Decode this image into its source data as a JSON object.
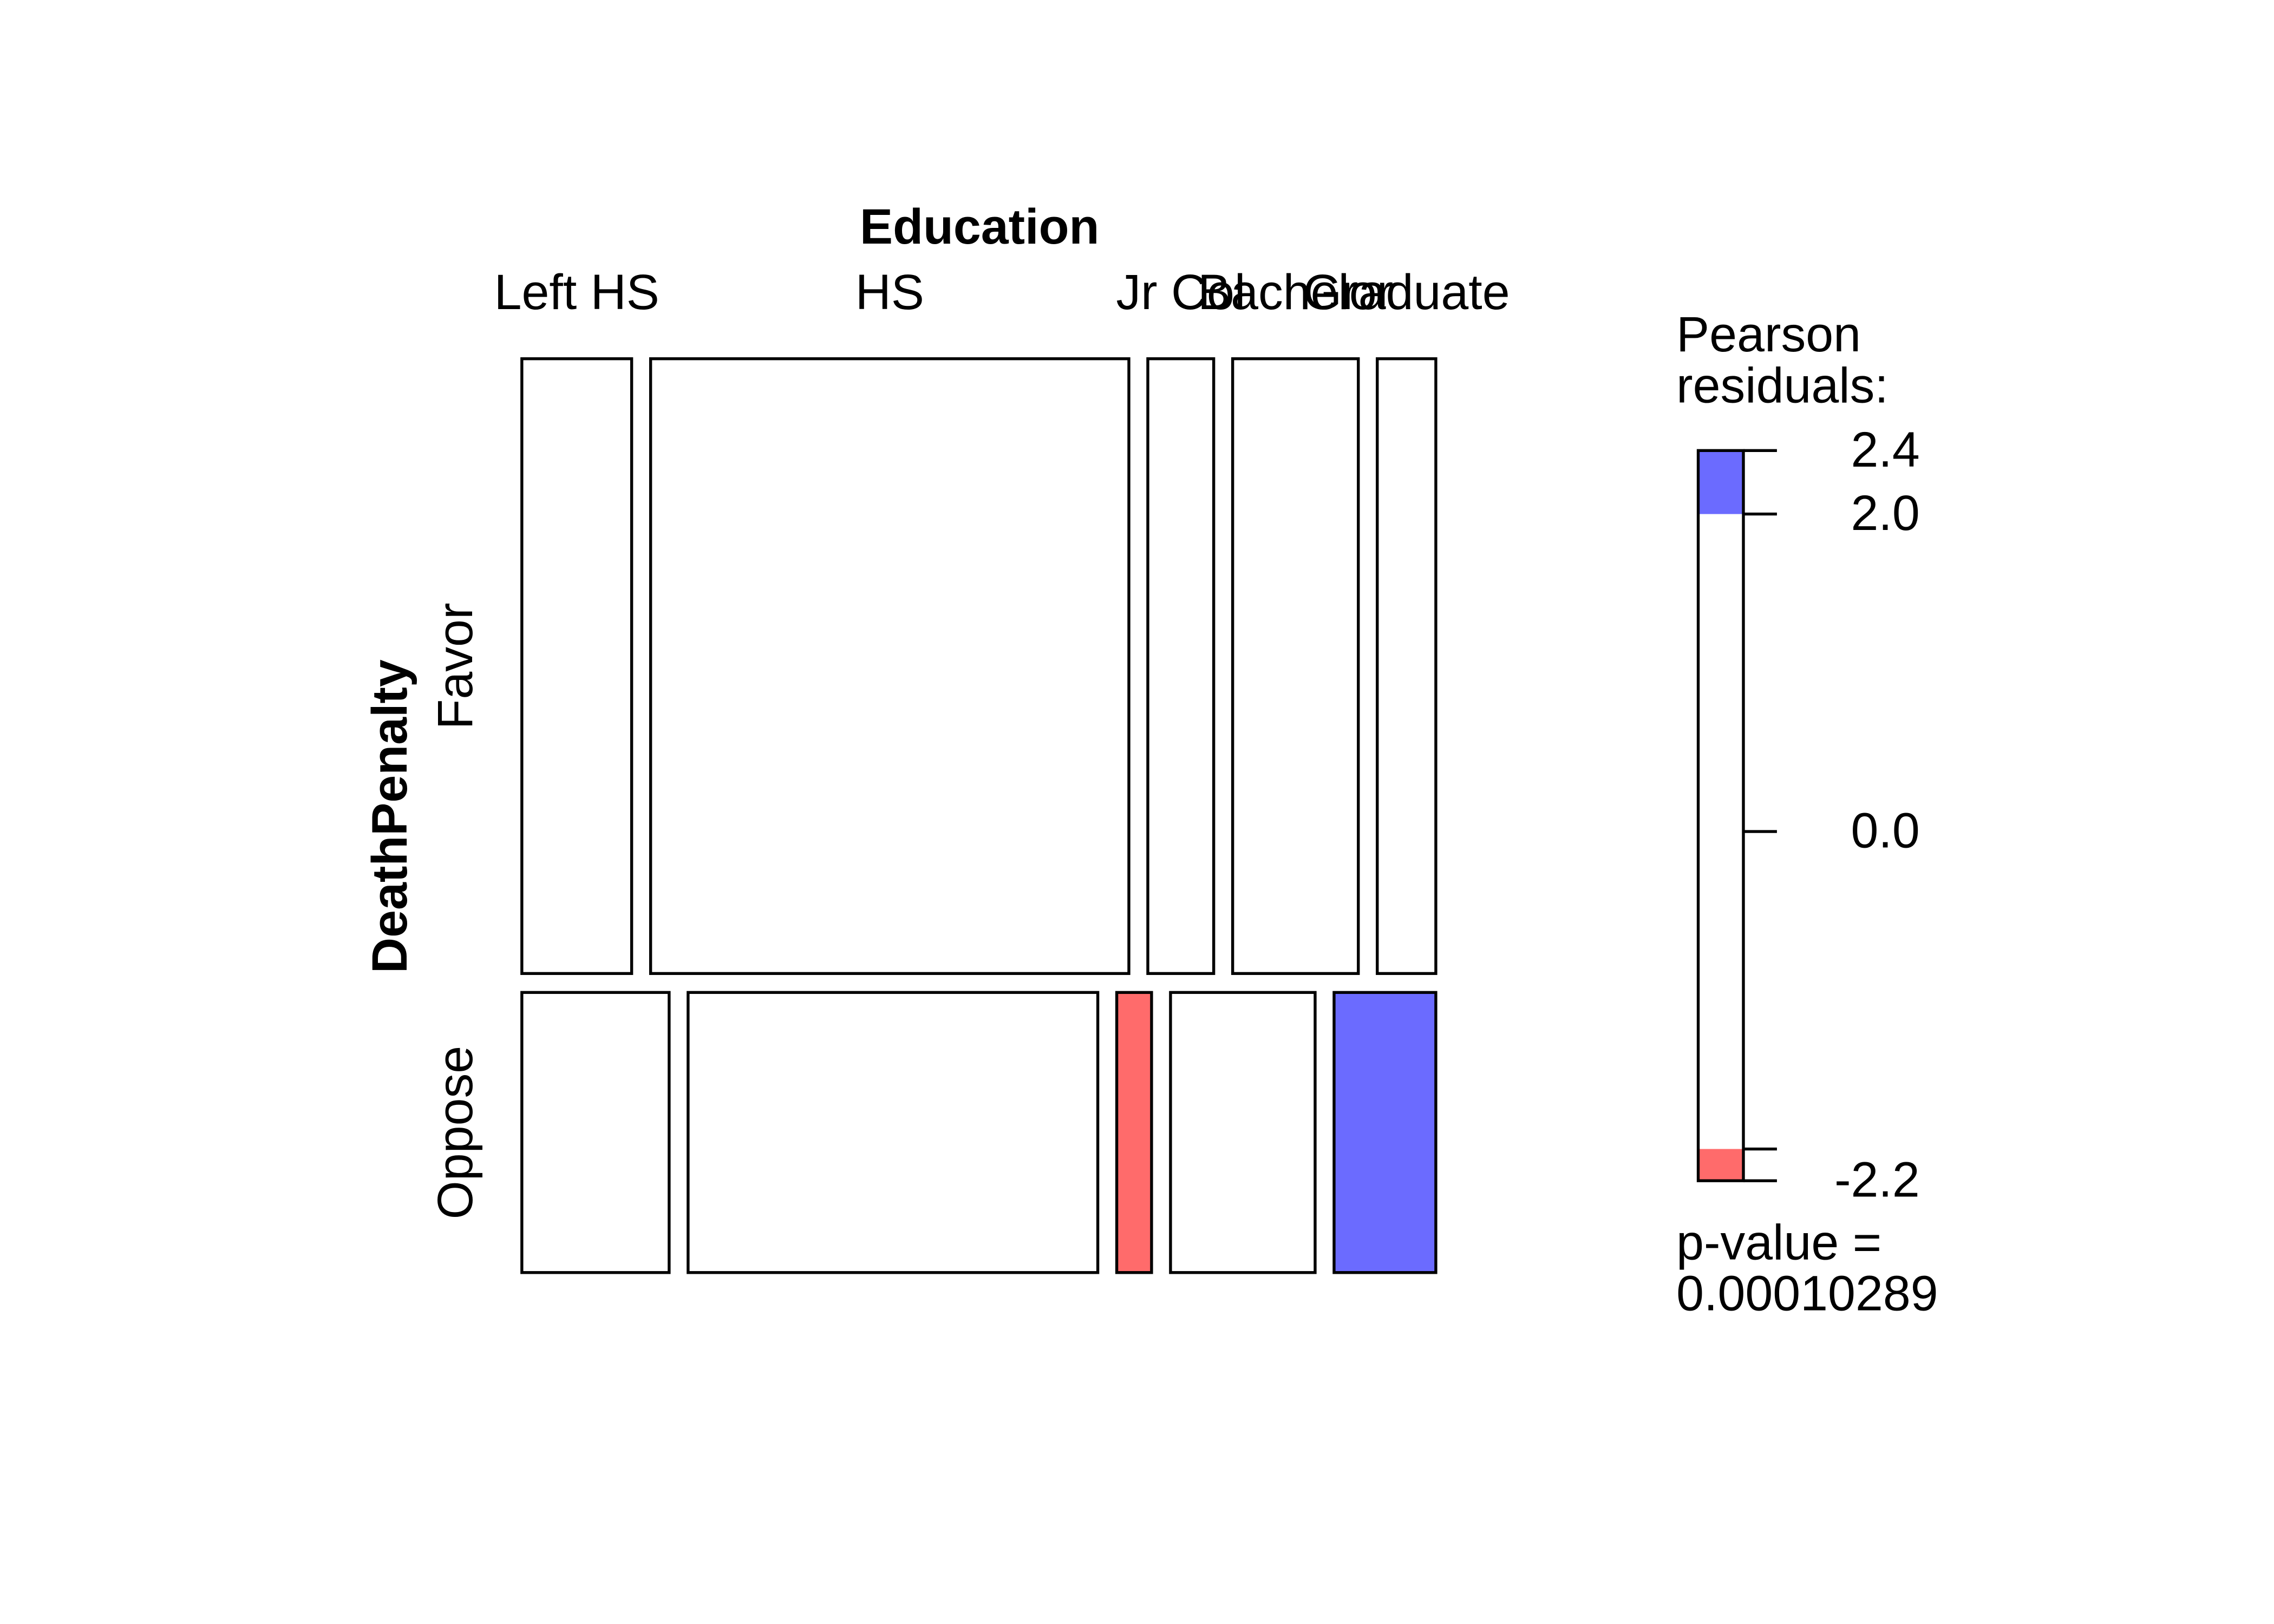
{
  "chart_data": {
    "type": "mosaic",
    "x_label": "Education",
    "y_label": "DeathPenalty",
    "categories": [
      "Left HS",
      "HS",
      "Jr Col",
      "Bachelor",
      "Graduate"
    ],
    "series": [
      {
        "name": "Favor",
        "values": [
          9.0,
          39.2,
          5.4,
          10.3,
          4.8
        ],
        "colors": [
          "#ffffff",
          "#ffffff",
          "#ffffff",
          "#ffffff",
          "#ffffff"
        ]
      },
      {
        "name": "Oppose",
        "values": [
          5.5,
          15.3,
          1.3,
          5.4,
          3.8
        ],
        "colors": [
          "#ffffff",
          "#ffffff",
          "#ff6b6b",
          "#ffffff",
          "#6b6bff"
        ]
      }
    ],
    "legend": {
      "title": [
        "Pearson",
        "residuals:"
      ],
      "ylim": [
        -2.2,
        2.4
      ],
      "yticks": [
        2.4,
        {
          "value": 2,
          "label": "2.0"
        },
        {
          "value": 0,
          "label": "0.0"
        },
        {
          "value": -2,
          "label": null
        },
        -2.2
      ],
      "shading": [
        {
          "from": 2,
          "to": 2.4,
          "color": "#6b6bff"
        },
        {
          "from": -2.2,
          "to": -2,
          "color": "#ff6b6b"
        }
      ],
      "p_value_label": "p-value =",
      "p_value": 0.00010289
    }
  }
}
